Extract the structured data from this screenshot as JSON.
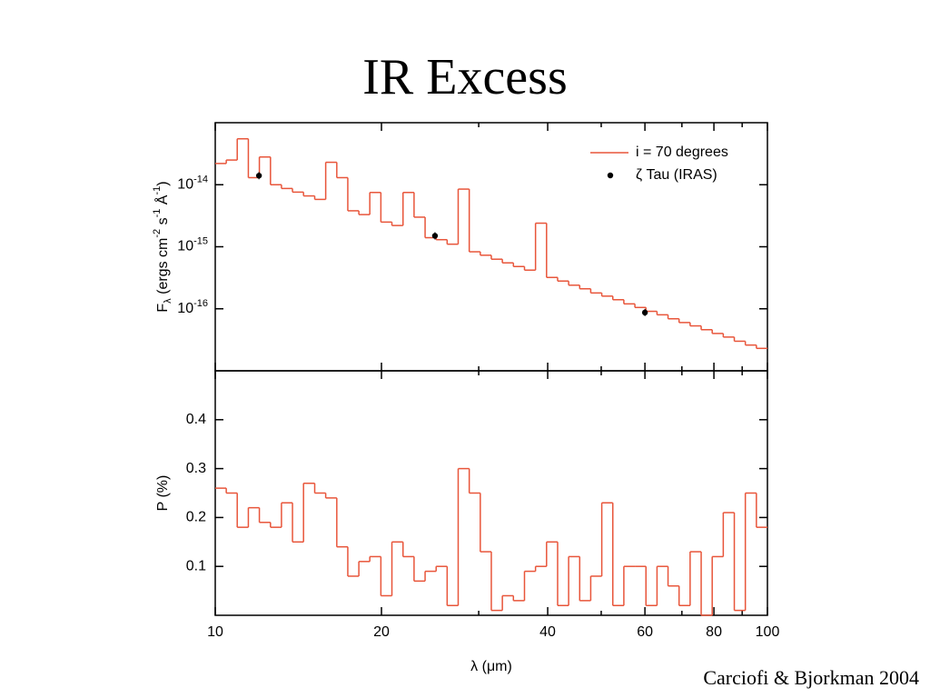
{
  "title": "IR Excess",
  "credit": "Carciofi & Bjorkman 2004",
  "chart_data": [
    {
      "type": "step",
      "yscale": "log",
      "xscale": "log",
      "xlim": [
        10,
        100
      ],
      "xticks": [
        10,
        20,
        40,
        60,
        80,
        100
      ],
      "xminor": [
        30,
        50,
        70,
        90
      ],
      "ylim": [
        1e-17,
        1e-13
      ],
      "yticks": [
        {
          "value": 1e-14,
          "label": "10",
          "exponent": "-14"
        },
        {
          "value": 1e-15,
          "label": "10",
          "exponent": "-15"
        },
        {
          "value": 1e-16,
          "label": "10",
          "exponent": "-16"
        }
      ],
      "ylabel": [
        "F",
        "λ",
        " (ergs cm",
        "-2",
        " s",
        "-1",
        " Å",
        "-1",
        ")"
      ],
      "legend": "upper right",
      "series": [
        {
          "name": "i = 70 degrees",
          "type": "step",
          "color": "#e8553a",
          "bins": [
            10,
            10.47,
            10.96,
            11.48,
            12.02,
            12.59,
            13.18,
            13.8,
            14.45,
            15.14,
            15.85,
            16.6,
            17.38,
            18.2,
            19.05,
            19.95,
            20.89,
            21.88,
            22.91,
            23.99,
            25.12,
            26.3,
            27.54,
            28.84,
            30.2,
            31.62,
            33.11,
            34.67,
            36.31,
            38.02,
            39.81,
            41.69,
            43.65,
            45.71,
            47.86,
            50.12,
            52.48,
            54.95,
            57.54,
            60.26,
            63.1,
            66.07,
            69.18,
            72.44,
            75.86,
            79.43,
            83.18,
            87.1,
            91.2,
            95.5,
            100
          ],
          "values": [
            2.2e-14,
            2.5e-14,
            5.5e-14,
            1.3e-14,
            2.8e-14,
            1e-14,
            8.7e-15,
            7.6e-15,
            6.6e-15,
            5.8e-15,
            2.3e-14,
            1.3e-14,
            3.8e-15,
            3.3e-15,
            7.5e-15,
            2.5e-15,
            2.2e-15,
            7.5e-15,
            3e-15,
            1.4e-15,
            1.3e-15,
            1.1e-15,
            8.5e-15,
            8.3e-16,
            7.3e-16,
            6.3e-16,
            5.5e-16,
            4.8e-16,
            4.2e-16,
            2.4e-15,
            3.2e-16,
            2.8e-16,
            2.4e-16,
            2.1e-16,
            1.8e-16,
            1.6e-16,
            1.4e-16,
            1.2e-16,
            1.05e-16,
            9.1e-17,
            8e-17,
            6.9e-17,
            6e-17,
            5.3e-17,
            4.6e-17,
            4e-17,
            3.5e-17,
            3e-17,
            2.6e-17,
            2.3e-17
          ]
        },
        {
          "name": "ζ Tau (IRAS)",
          "type": "scatter",
          "color": "#000000",
          "x": [
            12,
            25,
            60
          ],
          "values": [
            1.4e-14,
            1.5e-15,
            8.7e-17
          ]
        }
      ]
    },
    {
      "type": "step",
      "xscale": "log",
      "xlim": [
        10,
        100
      ],
      "xticks": [
        10,
        20,
        40,
        60,
        80,
        100
      ],
      "xminor": [
        30,
        50,
        70,
        90
      ],
      "ylim": [
        0,
        0.5
      ],
      "yticks": [
        0.1,
        0.2,
        0.3,
        0.4
      ],
      "xlabel": "λ (μm)",
      "ylabel": [
        "P (%)"
      ],
      "series": [
        {
          "type": "step",
          "color": "#e8553a",
          "bins": [
            10,
            10.47,
            10.96,
            11.48,
            12.02,
            12.59,
            13.18,
            13.8,
            14.45,
            15.14,
            15.85,
            16.6,
            17.38,
            18.2,
            19.05,
            19.95,
            20.89,
            21.88,
            22.91,
            23.99,
            25.12,
            26.3,
            27.54,
            28.84,
            30.2,
            31.62,
            33.11,
            34.67,
            36.31,
            38.02,
            39.81,
            41.69,
            43.65,
            45.71,
            47.86,
            50.12,
            52.48,
            54.95,
            57.54,
            60.26,
            63.1,
            66.07,
            69.18,
            72.44,
            75.86,
            79.43,
            83.18,
            87.1,
            91.2,
            95.5,
            100
          ],
          "values": [
            0.26,
            0.25,
            0.18,
            0.22,
            0.19,
            0.18,
            0.23,
            0.15,
            0.27,
            0.25,
            0.24,
            0.14,
            0.08,
            0.11,
            0.12,
            0.04,
            0.15,
            0.12,
            0.07,
            0.09,
            0.1,
            0.02,
            0.3,
            0.25,
            0.13,
            0.01,
            0.04,
            0.03,
            0.09,
            0.1,
            0.15,
            0.02,
            0.12,
            0.03,
            0.08,
            0.23,
            0.02,
            0.1,
            0.1,
            0.02,
            0.1,
            0.06,
            0.02,
            0.13,
            0.0,
            0.12,
            0.21,
            0.01,
            0.25,
            0.18
          ]
        }
      ]
    }
  ]
}
